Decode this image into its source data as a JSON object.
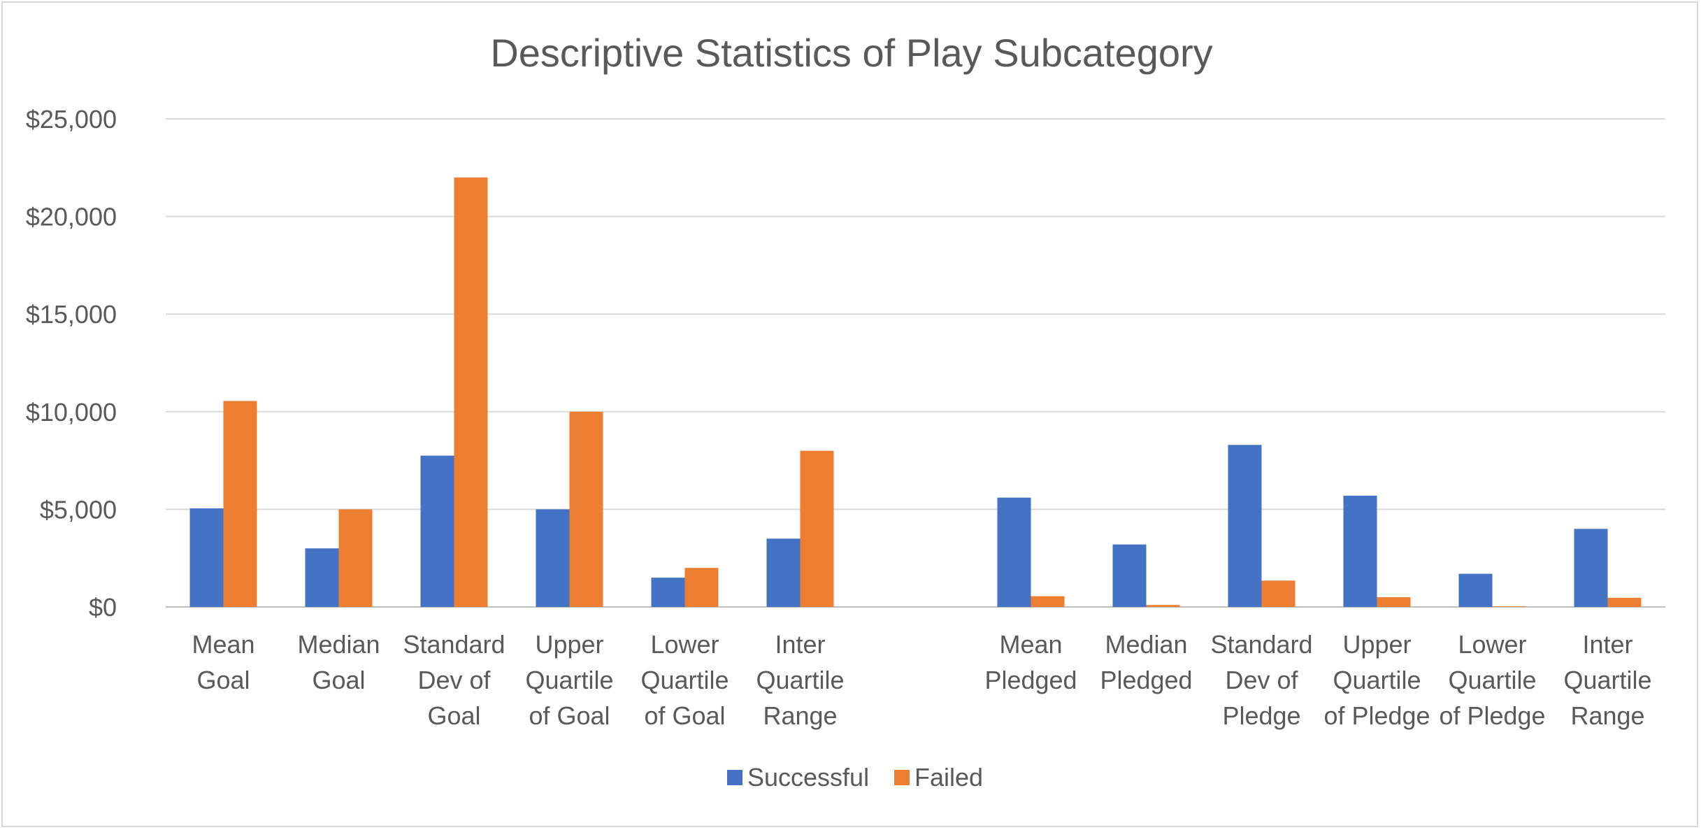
{
  "chart_data": {
    "type": "bar",
    "title": "Descriptive Statistics of Play Subcategory",
    "xlabel": "",
    "ylabel": "",
    "ylim": [
      0,
      25000
    ],
    "yticks": [
      "$0",
      "$5,000",
      "$10,000",
      "$15,000",
      "$20,000",
      "$25,000"
    ],
    "ytick_values": [
      0,
      5000,
      10000,
      15000,
      20000,
      25000
    ],
    "grid": true,
    "legend_position": "bottom",
    "categories": [
      [
        "Mean",
        "Goal"
      ],
      [
        "Median",
        "Goal"
      ],
      [
        "Standard",
        "Dev of",
        "Goal"
      ],
      [
        "Upper",
        "Quartile",
        "of Goal"
      ],
      [
        "Lower",
        "Quartile",
        "of Goal"
      ],
      [
        "Inter",
        "Quartile",
        "Range"
      ],
      [
        ""
      ],
      [
        "Mean",
        "Pledged"
      ],
      [
        "Median",
        "Pledged"
      ],
      [
        "Standard",
        "Dev of",
        "Pledge"
      ],
      [
        "Upper",
        "Quartile",
        "of Pledge"
      ],
      [
        "Lower",
        "Quartile",
        "of Pledge"
      ],
      [
        "Inter",
        "Quartile",
        "Range"
      ]
    ],
    "series": [
      {
        "name": "Successful",
        "color": "#4472c4",
        "values": [
          5050,
          3000,
          7750,
          5000,
          1500,
          3500,
          null,
          5600,
          3200,
          8300,
          5700,
          1700,
          4000
        ]
      },
      {
        "name": "Failed",
        "color": "#ed7d31",
        "values": [
          10550,
          5000,
          22000,
          10000,
          2000,
          8000,
          null,
          550,
          100,
          1350,
          500,
          30,
          470
        ]
      }
    ]
  }
}
